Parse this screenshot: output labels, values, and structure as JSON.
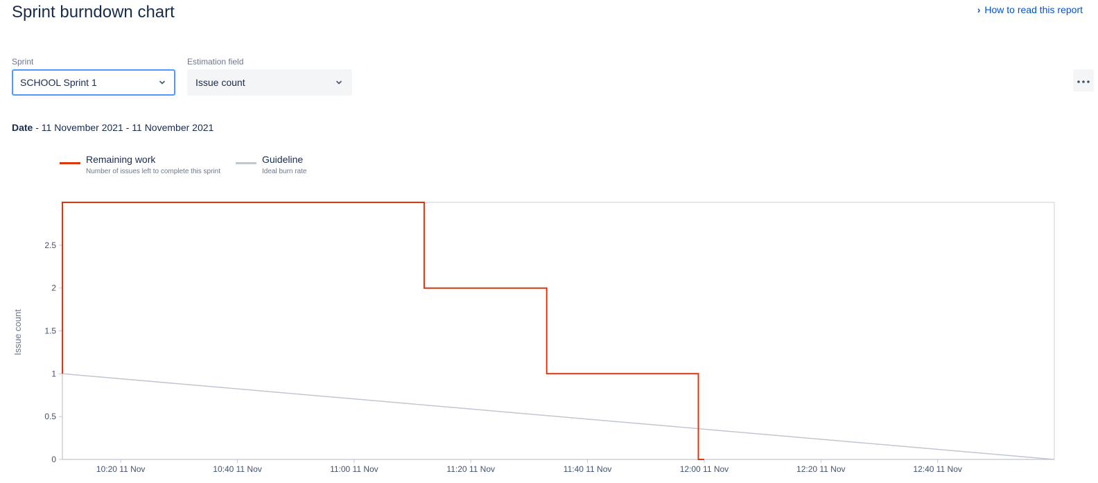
{
  "header": {
    "title": "Sprint burndown chart",
    "help_link": "How to read this report"
  },
  "filters": {
    "sprint_label": "Sprint",
    "sprint_value": "SCHOOL Sprint 1",
    "estimation_label": "Estimation field",
    "estimation_value": "Issue count"
  },
  "date": {
    "label": "Date",
    "range": " - 11 November 2021 - 11 November 2021"
  },
  "legend": {
    "remaining_title": "Remaining work",
    "remaining_sub": "Number of issues left to complete this sprint",
    "guideline_title": "Guideline",
    "guideline_sub": "Ideal burn rate"
  },
  "colors": {
    "remaining": "#de350b",
    "guideline": "#c1c7d0",
    "accent": "#0052cc"
  },
  "chart_data": {
    "type": "line",
    "ylabel": "Issue count",
    "ylim": [
      0,
      3
    ],
    "y_ticks": [
      0,
      0.5,
      1,
      1.5,
      2,
      2.5
    ],
    "x_range": [
      "10:10",
      "13:00"
    ],
    "x_ticks": [
      {
        "time": "10:20",
        "label": "10:20 11 Nov"
      },
      {
        "time": "10:40",
        "label": "10:40 11 Nov"
      },
      {
        "time": "11:00",
        "label": "11:00 11 Nov"
      },
      {
        "time": "11:20",
        "label": "11:20 11 Nov"
      },
      {
        "time": "11:40",
        "label": "11:40 11 Nov"
      },
      {
        "time": "12:00",
        "label": "12:00 11 Nov"
      },
      {
        "time": "12:20",
        "label": "12:20 11 Nov"
      },
      {
        "time": "12:40",
        "label": "12:40 11 Nov"
      }
    ],
    "series": [
      {
        "name": "Remaining work",
        "step": true,
        "points": [
          {
            "x": "10:10",
            "y": 1
          },
          {
            "x": "10:10",
            "y": 3
          },
          {
            "x": "11:12",
            "y": 3
          },
          {
            "x": "11:12",
            "y": 2
          },
          {
            "x": "11:33",
            "y": 2
          },
          {
            "x": "11:33",
            "y": 1
          },
          {
            "x": "11:59",
            "y": 1
          },
          {
            "x": "11:59",
            "y": 0
          },
          {
            "x": "12:00",
            "y": 0
          }
        ]
      },
      {
        "name": "Guideline",
        "step": false,
        "points": [
          {
            "x": "10:10",
            "y": 1
          },
          {
            "x": "13:00",
            "y": 0
          }
        ]
      }
    ]
  }
}
